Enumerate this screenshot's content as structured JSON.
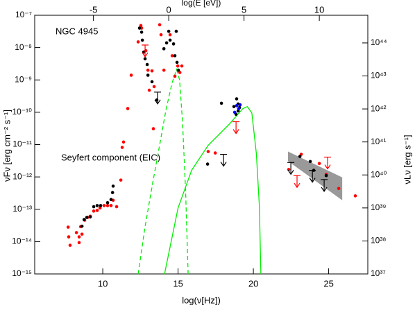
{
  "chart_data": {
    "type": "scatter",
    "xlabel": "log(ν[Hz])",
    "x2label": "log(E [eV])",
    "ylabel": "νFν [erg cm⁻² s⁻¹]",
    "y2label": "νLν [erg s⁻¹]",
    "annotations": [
      {
        "text": "NGC 4945",
        "color": "#000000"
      },
      {
        "text": "Seyfert component (EIC)",
        "color": "#00ee00"
      }
    ],
    "xlim": [
      5.48,
      27.6
    ],
    "xticks": [
      10,
      15,
      20,
      25
    ],
    "x2lim": [
      -8.9,
      13.22
    ],
    "x2ticks": [
      -5,
      0,
      5,
      10
    ],
    "ylog": true,
    "ylim": [
      1e-15,
      1e-07
    ],
    "yticks": [
      {
        "value": 1e-07,
        "label": "10⁻⁷"
      },
      {
        "value": 1e-08,
        "label": "10⁻⁸"
      },
      {
        "value": 1e-09,
        "label": "10⁻⁹"
      },
      {
        "value": 1e-10,
        "label": "10⁻¹⁰"
      },
      {
        "value": 1e-11,
        "label": "10⁻¹¹"
      },
      {
        "value": 1e-12,
        "label": "10⁻¹²"
      },
      {
        "value": 1e-13,
        "label": "10⁻¹³"
      },
      {
        "value": 1e-14,
        "label": "10⁻¹⁴"
      },
      {
        "value": 1e-15,
        "label": "10⁻¹⁵"
      }
    ],
    "y2log": true,
    "y2lim": [
      1e+37,
      6.9e+44
    ],
    "y2ticks": [
      {
        "value": 1e+37,
        "label": "10³⁷"
      },
      {
        "value": 1e+38,
        "label": "10³⁸"
      },
      {
        "value": 1e+39,
        "label": "10³⁹"
      },
      {
        "value": 1e+40,
        "label": "10⁴⁰"
      },
      {
        "value": 1e+41,
        "label": "10⁴¹"
      },
      {
        "value": 1e+42,
        "label": "10⁴²"
      },
      {
        "value": 1e+43,
        "label": "10⁴³"
      },
      {
        "value": 1e+44,
        "label": "10⁴⁴"
      }
    ],
    "series": [
      {
        "marker": "band",
        "color": "#808080",
        "x": [
          22.3,
          25.9
        ],
        "upper": [
          6.1e-12,
          9.7e-13
        ],
        "lower": [
          3.1e-12,
          1.9e-13
        ]
      },
      {
        "marker": "line",
        "dash": true,
        "color": "#00ee00",
        "x": [
          12.35,
          12.8,
          13.3,
          13.8,
          14.2,
          14.6,
          14.9,
          15.1,
          15.3,
          15.5,
          15.67
        ],
        "values": [
          1e-15,
          2.7e-14,
          6e-13,
          1.1e-11,
          1.2e-10,
          8e-10,
          2.1e-09,
          1e-09,
          4.6e-11,
          3.9e-13,
          1e-15
        ]
      },
      {
        "marker": "line",
        "dash": false,
        "color": "#00ee00",
        "x": [
          14.1,
          15.0,
          15.9,
          17.0,
          18.4,
          19.3,
          19.6,
          19.9,
          20.2,
          20.4,
          20.5
        ],
        "values": [
          1e-15,
          1.1e-13,
          1.6e-12,
          9.5e-12,
          4.3e-11,
          1.3e-10,
          1.5e-10,
          9.5e-11,
          5.3e-12,
          1.2e-13,
          1e-15
        ]
      },
      {
        "marker": "dot",
        "color": "#ff0000",
        "x": [
          7.7,
          7.74,
          7.83,
          8.25,
          8.43,
          8.43,
          8.62,
          8.53,
          8.8,
          8.99,
          9.17,
          9.4,
          9.63,
          9.82,
          10.09,
          10.32,
          10.55,
          10.69,
          10.92,
          11.2,
          11.29,
          11.38,
          11.66,
          11.89,
          12.35,
          12.53,
          12.58,
          12.86,
          13.0,
          13.09,
          13.27,
          13.36,
          13.41,
          13.78,
          13.87,
          14.06,
          14.47,
          14.61,
          14.79,
          14.98,
          15.12,
          15.25,
          17.0,
          17.47,
          22.35,
          23.18,
          24.38,
          24.84,
          25.67,
          26.77
        ],
        "values": [
          2.8e-14,
          1.4e-14,
          7.7e-15,
          1.9e-14,
          1.4e-14,
          9.3e-15,
          1.7e-14,
          2.9e-14,
          4.6e-14,
          5.6e-14,
          6.1e-14,
          8.8e-14,
          9.2e-14,
          1.1e-13,
          1.3e-13,
          1.3e-13,
          1.3e-13,
          1.9e-13,
          1.2e-13,
          8e-13,
          8.2e-12,
          1.2e-11,
          1.3e-10,
          1.4e-09,
          1.5e-08,
          4.8e-08,
          4e-08,
          8e-09,
          2e-09,
          4.8e-10,
          1.9e-09,
          3.1e-11,
          6.2e-10,
          5.1e-08,
          2.5e-08,
          2e-09,
          2.5e-08,
          5.6e-09,
          1.3e-09,
          2.7e-09,
          1.7e-09,
          2.7e-09,
          6.1e-12,
          5.5e-12,
          1.7e-12,
          5e-12,
          2.6e-12,
          1.2e-12,
          4.4e-13,
          2.6e-13
        ]
      },
      {
        "marker": "dot",
        "color": "#000000",
        "x": [
          8.62,
          8.76,
          8.94,
          9.17,
          9.4,
          9.63,
          9.86,
          10.32,
          10.55,
          10.65,
          10.69,
          12.44,
          12.58,
          12.63,
          12.72,
          12.81,
          12.95,
          13.0,
          13.27,
          13.59,
          14.06,
          14.24,
          14.38,
          14.47,
          14.7,
          14.79,
          14.88,
          14.93,
          15.02,
          17.88,
          18.71,
          18.89,
          18.99,
          19.08,
          18.99,
          18.85,
          16.96,
          23.09,
          23.78,
          24.01,
          24.84
        ],
        "values": [
          3e-14,
          4.8e-14,
          5.6e-14,
          5.8e-14,
          1.2e-13,
          1.3e-13,
          1.3e-13,
          1.6e-13,
          2e-13,
          3.3e-13,
          5.2e-13,
          4e-08,
          3e-08,
          1.7e-08,
          7.3e-09,
          4.5e-09,
          3e-09,
          1.4e-09,
          8.8e-10,
          2.4e-10,
          9.2e-09,
          1.4e-08,
          3.2e-08,
          1.7e-08,
          1.3e-08,
          5.6e-09,
          3.2e-08,
          3.5e-09,
          2e-09,
          1.9e-10,
          1.5e-10,
          2.6e-10,
          1.8e-10,
          1.4e-10,
          1.1e-10,
          8.7e-11,
          2.5e-12,
          4.3e-12,
          3e-12,
          1.6e-12,
          1.1e-12
        ]
      },
      {
        "marker": "dot",
        "color": "#0000ff",
        "x": [
          18.76,
          18.89,
          19.03,
          19.12
        ],
        "values": [
          1e-10,
          1.6e-10,
          1.3e-10,
          1.7e-10
        ]
      },
      {
        "marker": "arrow",
        "color": "#000000",
        "x": [
          13.64,
          18.02,
          22.49,
          23.92,
          24.7
        ],
        "values": [
          4.2e-10,
          5e-12,
          2.8e-12,
          1.6e-12,
          8.3e-13
        ]
      },
      {
        "marker": "arrow",
        "color": "#ff0000",
        "x": [
          12.81,
          18.85,
          22.9,
          24.93
        ],
        "values": [
          1.2e-08,
          5.1e-11,
          1.1e-12,
          4.1e-12
        ]
      }
    ]
  }
}
